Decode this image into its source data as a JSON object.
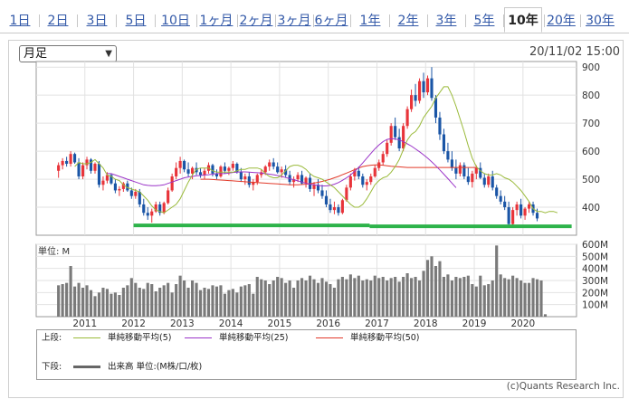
{
  "tabs": [
    {
      "label": "1日"
    },
    {
      "label": "2日"
    },
    {
      "label": "3日"
    },
    {
      "label": "5日"
    },
    {
      "label": "10日"
    },
    {
      "label": "1ヶ月"
    },
    {
      "label": "2ヶ月"
    },
    {
      "label": "3ヶ月"
    },
    {
      "label": "6ヶ月"
    },
    {
      "label": "1年"
    },
    {
      "label": "2年"
    },
    {
      "label": "3年"
    },
    {
      "label": "5年"
    },
    {
      "label": "10年"
    },
    {
      "label": "20年"
    },
    {
      "label": "30年"
    }
  ],
  "active_tab": "10年",
  "period_select": {
    "value": "月足"
  },
  "datetime": "20/11/02 15:00",
  "legend": {
    "upper_label": "上段:",
    "lower_label": "下段:",
    "ma5": "単純移動平均(5)",
    "ma25": "単純移動平均(25)",
    "ma50": "単純移動平均(50)",
    "volume": "出来高 単位:(M株/口/枚)"
  },
  "copyright": "(c)Quants Research Inc.",
  "colors": {
    "up": "#e8343a",
    "down": "#1a55a6",
    "ma5": "#9aba3a",
    "ma25": "#9b34c8",
    "ma50": "#e23a2a",
    "support": "#2db34a",
    "volume": "#7a7a7a",
    "tab_link": "#3359a8"
  },
  "chart_data": [
    {
      "type": "candlestick",
      "ylim": [
        300,
        920
      ],
      "yticks": [
        400,
        500,
        600,
        700,
        800,
        900
      ],
      "x_labels": [
        "2011",
        "2012",
        "2013",
        "2014",
        "2015",
        "2016",
        "2017",
        "2018",
        "2019",
        "2020"
      ],
      "x_start": 2010.0,
      "x_end": 2021.1,
      "start_month": "2010-06",
      "ohlc": [
        [
          530,
          560,
          505,
          550
        ],
        [
          550,
          575,
          535,
          565
        ],
        [
          565,
          580,
          545,
          555
        ],
        [
          555,
          600,
          545,
          590
        ],
        [
          590,
          595,
          555,
          560
        ],
        [
          560,
          575,
          500,
          510
        ],
        [
          510,
          560,
          500,
          550
        ],
        [
          550,
          580,
          535,
          570
        ],
        [
          570,
          575,
          520,
          530
        ],
        [
          530,
          560,
          520,
          555
        ],
        [
          555,
          565,
          470,
          480
        ],
        [
          480,
          510,
          460,
          495
        ],
        [
          495,
          525,
          485,
          515
        ],
        [
          515,
          520,
          480,
          485
        ],
        [
          485,
          500,
          450,
          460
        ],
        [
          460,
          475,
          440,
          465
        ],
        [
          465,
          490,
          455,
          485
        ],
        [
          485,
          495,
          455,
          460
        ],
        [
          460,
          470,
          430,
          440
        ],
        [
          440,
          465,
          430,
          455
        ],
        [
          455,
          465,
          400,
          410
        ],
        [
          410,
          430,
          370,
          380
        ],
        [
          380,
          400,
          355,
          370
        ],
        [
          370,
          395,
          345,
          385
        ],
        [
          385,
          420,
          380,
          410
        ],
        [
          410,
          420,
          370,
          380
        ],
        [
          380,
          420,
          375,
          415
        ],
        [
          415,
          470,
          410,
          460
        ],
        [
          460,
          520,
          455,
          510
        ],
        [
          510,
          560,
          500,
          540
        ],
        [
          540,
          580,
          520,
          565
        ],
        [
          565,
          570,
          525,
          535
        ],
        [
          535,
          560,
          510,
          520
        ],
        [
          520,
          545,
          500,
          540
        ],
        [
          540,
          560,
          515,
          525
        ],
        [
          525,
          540,
          505,
          515
        ],
        [
          515,
          540,
          500,
          530
        ],
        [
          530,
          560,
          520,
          550
        ],
        [
          550,
          555,
          510,
          520
        ],
        [
          520,
          535,
          500,
          510
        ],
        [
          510,
          550,
          505,
          545
        ],
        [
          545,
          560,
          520,
          530
        ],
        [
          530,
          545,
          515,
          540
        ],
        [
          540,
          565,
          530,
          555
        ],
        [
          555,
          560,
          520,
          525
        ],
        [
          525,
          540,
          490,
          500
        ],
        [
          500,
          520,
          480,
          510
        ],
        [
          510,
          525,
          470,
          480
        ],
        [
          480,
          500,
          460,
          490
        ],
        [
          490,
          520,
          480,
          515
        ],
        [
          515,
          535,
          505,
          525
        ],
        [
          525,
          550,
          515,
          545
        ],
        [
          545,
          570,
          530,
          560
        ],
        [
          560,
          575,
          535,
          545
        ],
        [
          545,
          560,
          520,
          525
        ],
        [
          525,
          545,
          505,
          535
        ],
        [
          535,
          550,
          505,
          515
        ],
        [
          515,
          530,
          480,
          490
        ],
        [
          490,
          510,
          470,
          500
        ],
        [
          500,
          525,
          490,
          515
        ],
        [
          515,
          530,
          480,
          485
        ],
        [
          485,
          510,
          470,
          505
        ],
        [
          505,
          520,
          455,
          465
        ],
        [
          465,
          490,
          440,
          480
        ],
        [
          480,
          500,
          450,
          460
        ],
        [
          460,
          480,
          430,
          440
        ],
        [
          440,
          460,
          400,
          410
        ],
        [
          410,
          430,
          380,
          390
        ],
        [
          390,
          420,
          375,
          400
        ],
        [
          400,
          410,
          370,
          380
        ],
        [
          380,
          430,
          375,
          425
        ],
        [
          425,
          480,
          420,
          470
        ],
        [
          470,
          520,
          460,
          510
        ],
        [
          510,
          540,
          495,
          530
        ],
        [
          530,
          545,
          500,
          510
        ],
        [
          510,
          520,
          470,
          480
        ],
        [
          480,
          500,
          460,
          490
        ],
        [
          490,
          520,
          480,
          510
        ],
        [
          510,
          550,
          505,
          540
        ],
        [
          540,
          570,
          530,
          560
        ],
        [
          560,
          600,
          550,
          590
        ],
        [
          590,
          640,
          580,
          630
        ],
        [
          630,
          700,
          620,
          690
        ],
        [
          690,
          720,
          640,
          650
        ],
        [
          650,
          680,
          600,
          610
        ],
        [
          610,
          700,
          600,
          690
        ],
        [
          690,
          760,
          680,
          750
        ],
        [
          750,
          820,
          740,
          800
        ],
        [
          800,
          840,
          760,
          780
        ],
        [
          780,
          860,
          770,
          850
        ],
        [
          850,
          880,
          790,
          810
        ],
        [
          810,
          870,
          800,
          860
        ],
        [
          860,
          900,
          780,
          790
        ],
        [
          790,
          800,
          700,
          720
        ],
        [
          720,
          740,
          640,
          660
        ],
        [
          660,
          680,
          590,
          600
        ],
        [
          600,
          630,
          560,
          570
        ],
        [
          570,
          600,
          530,
          540
        ],
        [
          540,
          570,
          500,
          520
        ],
        [
          520,
          560,
          510,
          550
        ],
        [
          550,
          560,
          500,
          510
        ],
        [
          510,
          540,
          480,
          490
        ],
        [
          490,
          530,
          470,
          520
        ],
        [
          520,
          550,
          500,
          540
        ],
        [
          540,
          560,
          500,
          505
        ],
        [
          505,
          520,
          470,
          480
        ],
        [
          480,
          520,
          470,
          510
        ],
        [
          510,
          530,
          460,
          470
        ],
        [
          470,
          480,
          430,
          440
        ],
        [
          440,
          460,
          410,
          420
        ],
        [
          420,
          440,
          390,
          400
        ],
        [
          400,
          420,
          330,
          340
        ],
        [
          340,
          400,
          330,
          390
        ],
        [
          390,
          420,
          370,
          410
        ],
        [
          410,
          430,
          360,
          370
        ],
        [
          370,
          400,
          355,
          395
        ],
        [
          395,
          420,
          380,
          410
        ],
        [
          410,
          420,
          370,
          380
        ],
        [
          380,
          395,
          350,
          360
        ]
      ],
      "ma5_start": 4,
      "ma5": [
        545,
        560,
        555,
        555,
        560,
        570,
        555,
        540,
        515,
        510,
        500,
        495,
        480,
        470,
        465,
        460,
        455,
        440,
        425,
        405,
        390,
        385,
        380,
        390,
        400,
        410,
        430,
        460,
        490,
        515,
        535,
        540,
        540,
        540,
        530,
        525,
        525,
        525,
        525,
        525,
        530,
        535,
        535,
        540,
        540,
        540,
        535,
        520,
        510,
        505,
        505,
        515,
        530,
        545,
        550,
        550,
        545,
        535,
        520,
        510,
        505,
        500,
        490,
        480,
        470,
        455,
        440,
        425,
        410,
        400,
        400,
        410,
        430,
        455,
        480,
        495,
        505,
        510,
        525,
        545,
        570,
        605,
        640,
        660,
        670,
        690,
        720,
        740,
        760,
        790,
        810,
        830,
        830,
        800,
        760,
        715,
        670,
        620,
        575,
        545,
        530,
        520,
        515,
        515,
        520,
        515,
        505,
        500,
        490,
        475,
        460,
        440,
        420,
        395,
        385,
        385,
        380,
        385,
        385,
        380
      ],
      "ma25_start": 12,
      "ma25": [
        520,
        520,
        515,
        510,
        505,
        500,
        495,
        490,
        485,
        480,
        478,
        477,
        477,
        478,
        480,
        485,
        490,
        495,
        500,
        505,
        508,
        510,
        512,
        513,
        515,
        516,
        518,
        520,
        520,
        520,
        522,
        524,
        525,
        526,
        526,
        525,
        524,
        523,
        522,
        520,
        518,
        516,
        513,
        510,
        506,
        502,
        498,
        494,
        490,
        485,
        482,
        480,
        478,
        476,
        476,
        478,
        482,
        488,
        496,
        505,
        515,
        528,
        542,
        558,
        575,
        592,
        608,
        622,
        634,
        642,
        645,
        644,
        640,
        634,
        626,
        618,
        608,
        598,
        587,
        575,
        562,
        548,
        533,
        518,
        502,
        486,
        470
      ],
      "ma50_start": 35,
      "ma50": [
        500,
        500,
        500,
        499,
        498,
        497,
        496,
        495,
        494,
        493,
        492,
        491,
        490,
        489,
        488,
        487,
        486,
        485,
        484,
        483,
        482,
        481,
        480,
        480,
        480,
        481,
        482,
        484,
        486,
        489,
        492,
        496,
        500,
        505,
        510,
        516,
        522,
        528,
        534,
        540,
        545,
        548,
        550,
        551,
        551,
        550,
        548,
        546,
        545,
        544,
        543,
        542,
        542,
        542,
        542,
        542,
        542,
        542,
        542,
        542,
        542,
        542,
        542,
        542,
        542,
        542,
        542,
        542,
        542
      ],
      "support_segments": [
        {
          "x0": 2012.0,
          "x1": 2016.85,
          "y": 335
        },
        {
          "x0": 2016.85,
          "x1": 2021.0,
          "y": 332
        }
      ]
    },
    {
      "type": "bar",
      "title": "単位: M",
      "ylim": [
        0,
        600
      ],
      "yticks": [
        100,
        200,
        300,
        400,
        500,
        600
      ],
      "ytick_labels": [
        "100M",
        "200M",
        "300M",
        "400M",
        "500M",
        "600M"
      ],
      "x_labels": [
        "2011",
        "2012",
        "2013",
        "2014",
        "2015",
        "2016",
        "2017",
        "2018",
        "2019",
        "2020"
      ],
      "values": [
        260,
        270,
        280,
        420,
        250,
        280,
        240,
        260,
        220,
        170,
        200,
        240,
        230,
        190,
        200,
        180,
        240,
        260,
        320,
        280,
        240,
        230,
        280,
        270,
        210,
        240,
        260,
        280,
        200,
        270,
        340,
        300,
        240,
        300,
        280,
        220,
        240,
        230,
        260,
        250,
        260,
        190,
        220,
        230,
        200,
        250,
        260,
        270,
        190,
        330,
        310,
        300,
        270,
        300,
        330,
        320,
        280,
        300,
        240,
        300,
        320,
        300,
        340,
        310,
        280,
        320,
        290,
        270,
        240,
        310,
        330,
        310,
        350,
        320,
        340,
        300,
        310,
        300,
        340,
        320,
        330,
        300,
        320,
        330,
        290,
        330,
        360,
        320,
        330,
        300,
        380,
        470,
        500,
        420,
        460,
        330,
        350,
        300,
        330,
        320,
        330,
        340,
        270,
        250,
        340,
        260,
        270,
        300,
        590,
        350,
        320,
        310,
        340,
        320,
        300,
        280,
        280,
        320,
        310,
        300,
        20
      ]
    }
  ]
}
